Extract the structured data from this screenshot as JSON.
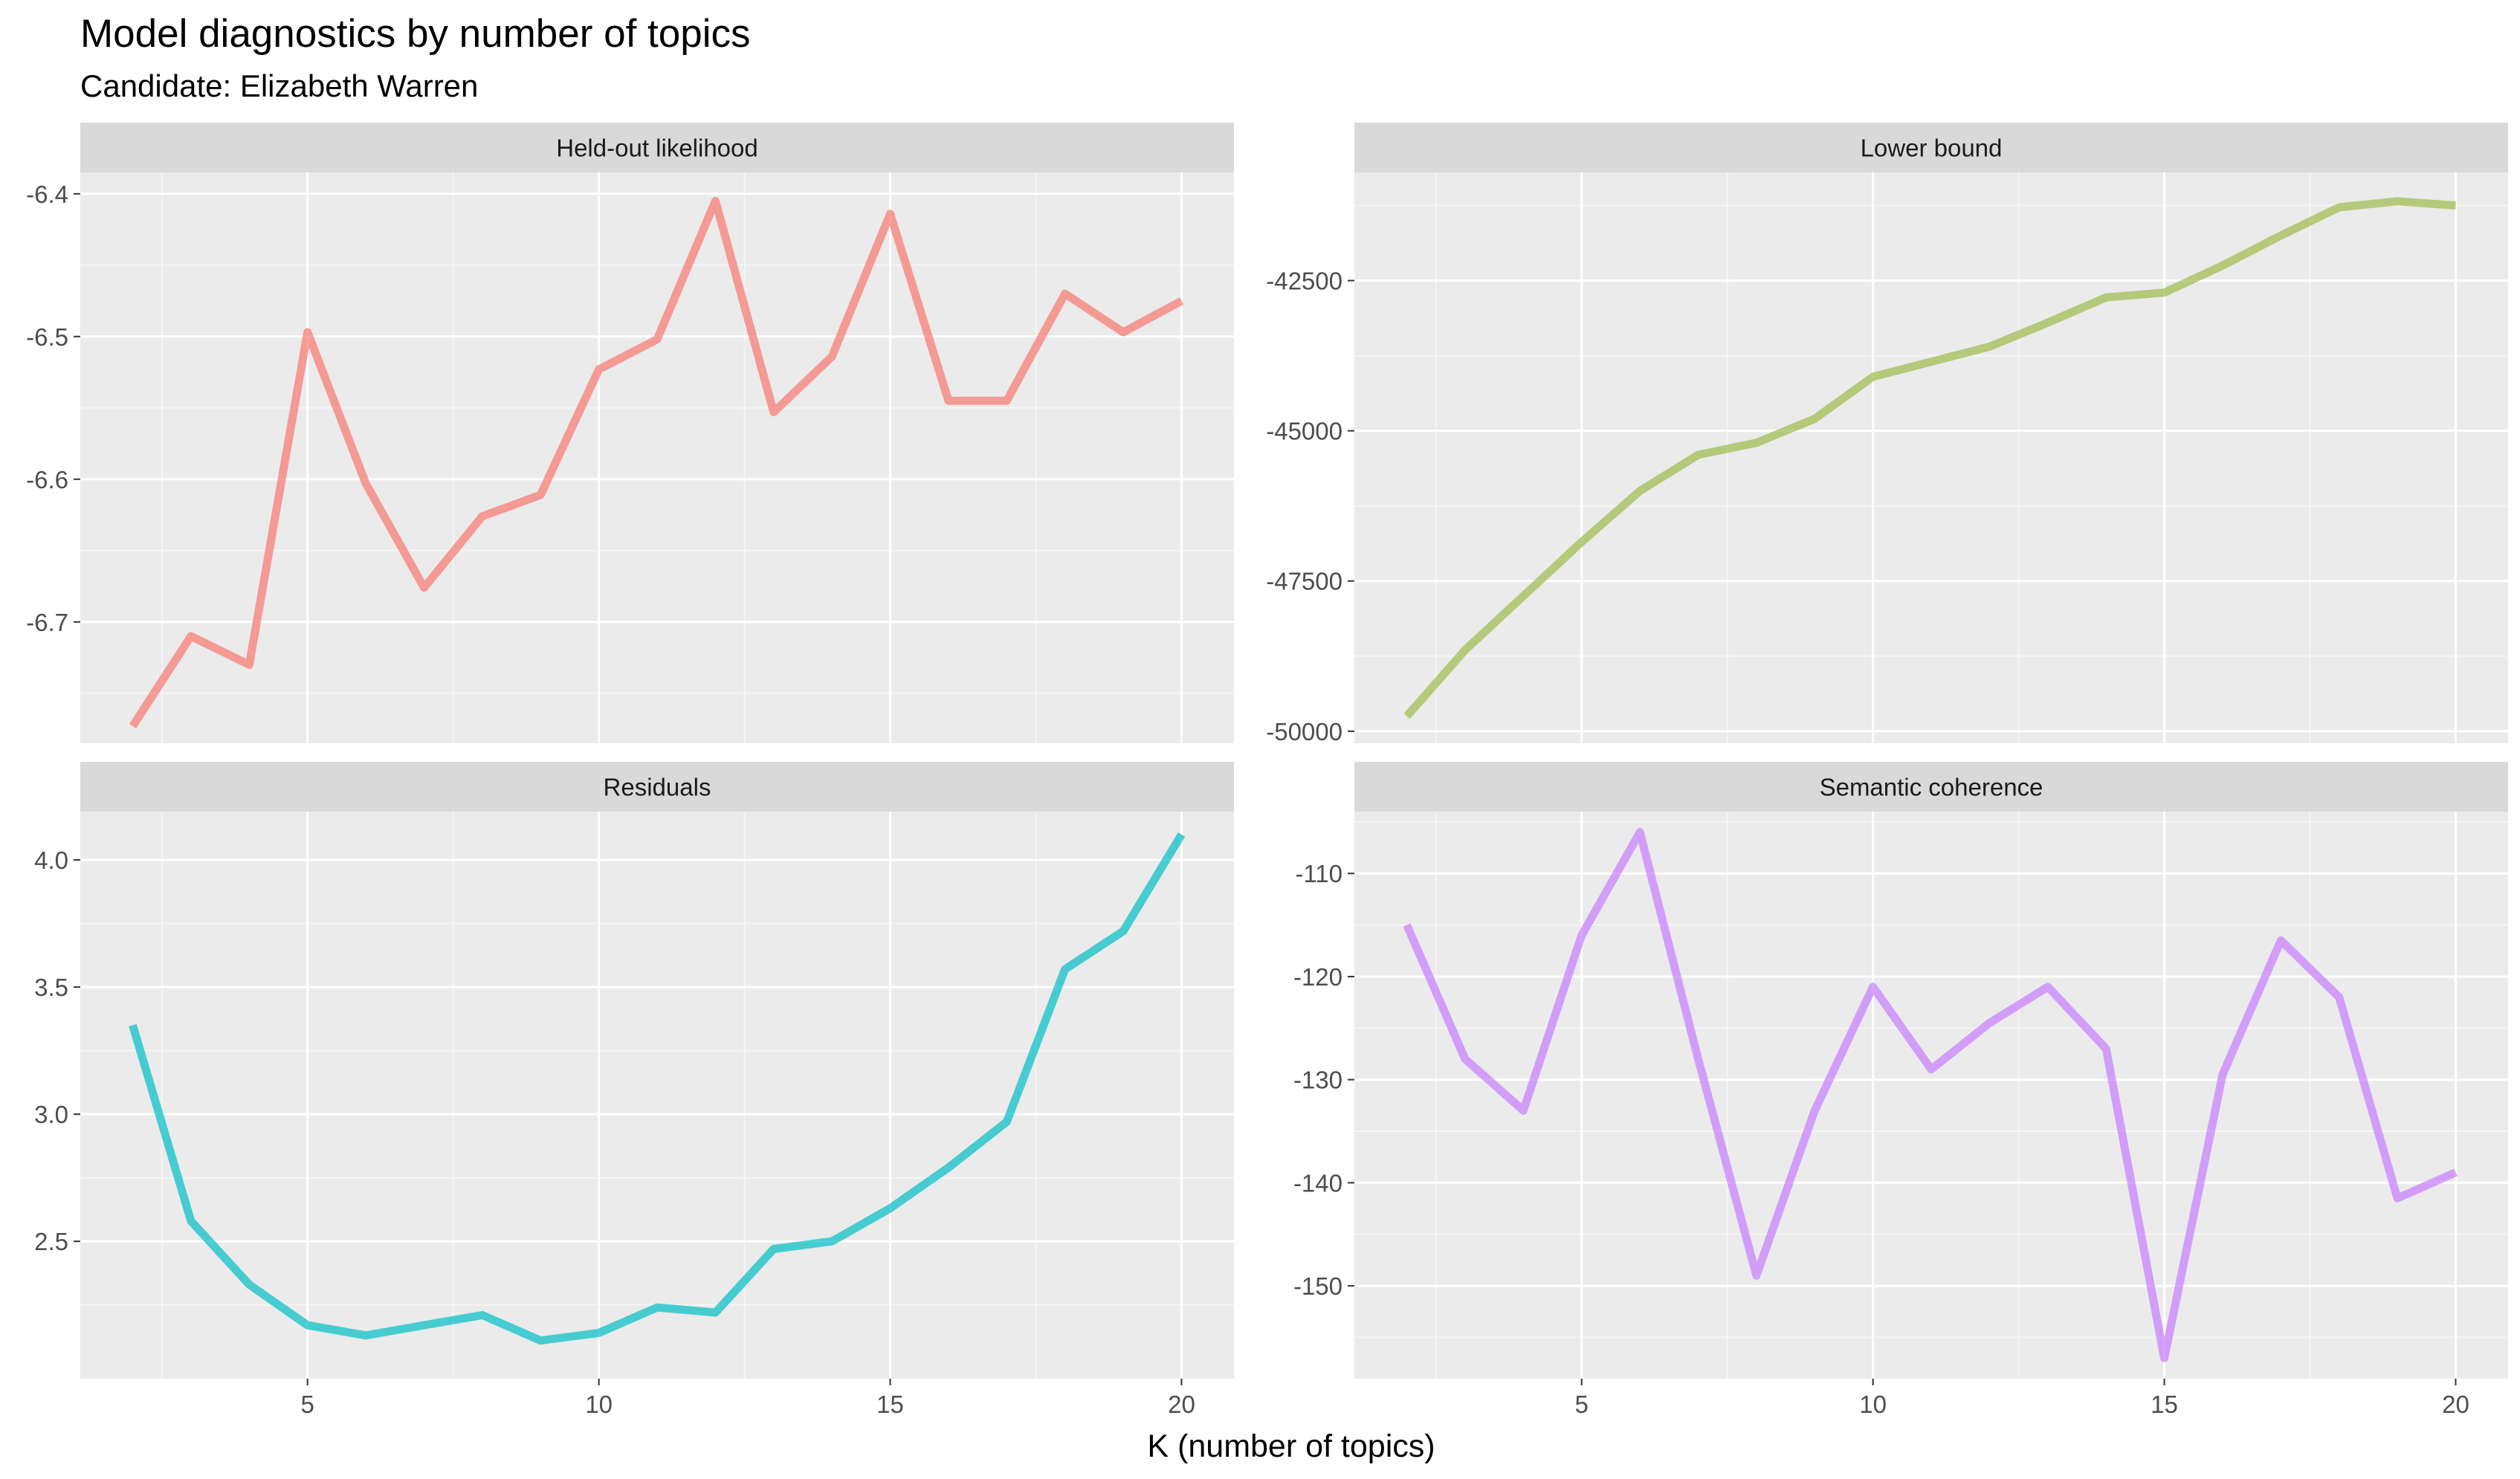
{
  "title": "Model diagnostics by number of topics",
  "subtitle": "Candidate: Elizabeth Warren",
  "chart_data": [
    {
      "type": "line",
      "panel": "Held-out likelihood",
      "color": "#F8766D",
      "x": [
        2,
        3,
        4,
        5,
        6,
        7,
        8,
        9,
        10,
        11,
        12,
        13,
        14,
        15,
        16,
        17,
        18,
        19,
        20
      ],
      "y": [
        -6.773,
        -6.71,
        -6.73,
        -6.497,
        -6.603,
        -6.676,
        -6.626,
        -6.611,
        -6.523,
        -6.502,
        -6.405,
        -6.553,
        -6.514,
        -6.414,
        -6.545,
        -6.545,
        -6.47,
        -6.497,
        -6.475
      ],
      "ylim": [
        -6.785,
        -6.385
      ],
      "yticks": [
        -6.7,
        -6.6,
        -6.5,
        -6.4
      ],
      "ytick_labels": [
        "-6.7",
        "-6.6",
        "-6.5",
        "-6.4"
      ],
      "xlim": [
        1.1,
        20.9
      ],
      "xticks": [
        5,
        10,
        15,
        20
      ],
      "xtick_labels": [
        "5",
        "10",
        "15",
        "20"
      ],
      "grid": true
    },
    {
      "type": "line",
      "panel": "Lower bound",
      "color": "#9CBA4A",
      "x": [
        2,
        3,
        4,
        5,
        6,
        7,
        8,
        9,
        10,
        11,
        12,
        13,
        14,
        15,
        16,
        17,
        18,
        19,
        20
      ],
      "y": [
        -49750,
        -48650,
        -47750,
        -46850,
        -46000,
        -45400,
        -45200,
        -44800,
        -44100,
        -43850,
        -43600,
        -43200,
        -42780,
        -42700,
        -42250,
        -41750,
        -41280,
        -41180,
        -41250
      ],
      "ylim": [
        -50200,
        -40700
      ],
      "yticks": [
        -50000,
        -47500,
        -45000,
        -42500
      ],
      "ytick_labels": [
        "-50000",
        "-47500",
        "-45000",
        "-42500"
      ],
      "xlim": [
        1.1,
        20.9
      ],
      "xticks": [
        5,
        10,
        15,
        20
      ],
      "xtick_labels": [
        "5",
        "10",
        "15",
        "20"
      ],
      "grid": true
    },
    {
      "type": "line",
      "panel": "Residuals",
      "color": "#00BFC4",
      "x": [
        2,
        3,
        4,
        5,
        6,
        7,
        8,
        9,
        10,
        11,
        12,
        13,
        14,
        15,
        16,
        17,
        18,
        19,
        20
      ],
      "y": [
        3.35,
        2.58,
        2.33,
        2.17,
        2.13,
        2.17,
        2.21,
        2.11,
        2.14,
        2.24,
        2.22,
        2.47,
        2.5,
        2.63,
        2.79,
        2.97,
        3.57,
        3.72,
        4.1
      ],
      "ylim": [
        1.96,
        4.19
      ],
      "yticks": [
        2.5,
        3.0,
        3.5,
        4.0
      ],
      "ytick_labels": [
        "2.5",
        "3.0",
        "3.5",
        "4.0"
      ],
      "xlim": [
        1.1,
        20.9
      ],
      "xticks": [
        5,
        10,
        15,
        20
      ],
      "xtick_labels": [
        "5",
        "10",
        "15",
        "20"
      ],
      "grid": true
    },
    {
      "type": "line",
      "panel": "Semantic coherence",
      "color": "#C77CFF",
      "x": [
        2,
        3,
        4,
        5,
        6,
        7,
        8,
        9,
        10,
        11,
        12,
        13,
        14,
        15,
        16,
        17,
        18,
        19,
        20
      ],
      "y": [
        -115,
        -128,
        -133,
        -116,
        -106,
        -128,
        -149,
        -133,
        -121,
        -129,
        -124.5,
        -121,
        -127,
        -157,
        -129.5,
        -116.5,
        -122,
        -141.5,
        -139
      ],
      "ylim": [
        -159,
        -104
      ],
      "yticks": [
        -150,
        -140,
        -130,
        -120,
        -110
      ],
      "ytick_labels": [
        "-150",
        "-140",
        "-130",
        "-120",
        "-110"
      ],
      "xlim": [
        1.1,
        20.9
      ],
      "xticks": [
        5,
        10,
        15,
        20
      ],
      "xtick_labels": [
        "5",
        "10",
        "15",
        "20"
      ],
      "grid": true
    }
  ],
  "xlabel": "K (number of topics)"
}
